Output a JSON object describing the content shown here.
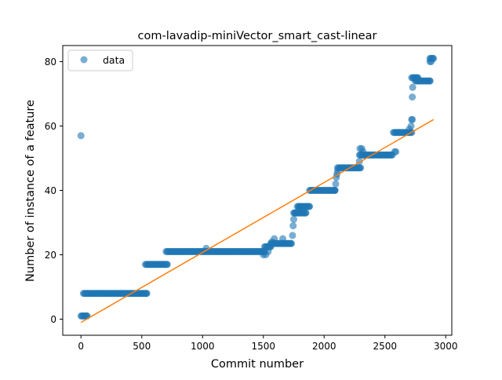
{
  "chart_data": {
    "type": "scatter",
    "title": "com-lavadip-miniVector_smart_cast-linear",
    "xlabel": "Commit number",
    "ylabel": "Number of instance of a feature",
    "xlim": [
      -150,
      3050
    ],
    "ylim": [
      -5,
      85
    ],
    "xticks": [
      0,
      500,
      1000,
      1500,
      2000,
      2500,
      3000
    ],
    "yticks": [
      0,
      20,
      40,
      60,
      80
    ],
    "grid": false,
    "legend": {
      "placement": "top-left",
      "entries": [
        "data"
      ]
    },
    "colors": {
      "data": "#1f77b4",
      "fit": "#ff7f0e"
    },
    "series": [
      {
        "name": "data",
        "kind": "points",
        "segments": [
          {
            "x_start": 0,
            "x_end": 50,
            "y": 1
          },
          {
            "x_start": 20,
            "x_end": 540,
            "y": 8
          },
          {
            "x_start": 530,
            "x_end": 710,
            "y": 17
          },
          {
            "x_start": 700,
            "x_end": 1510,
            "y": 21
          },
          {
            "x_start": 1510,
            "x_end": 1560,
            "y": 22.5
          },
          {
            "x_start": 1560,
            "x_end": 1730,
            "y": 23.5
          },
          {
            "x_start": 1750,
            "x_end": 1850,
            "y": 33
          },
          {
            "x_start": 1780,
            "x_end": 1880,
            "y": 35
          },
          {
            "x_start": 1880,
            "x_end": 2090,
            "y": 40
          },
          {
            "x_start": 2110,
            "x_end": 2300,
            "y": 47
          },
          {
            "x_start": 2290,
            "x_end": 2560,
            "y": 51
          },
          {
            "x_start": 2570,
            "x_end": 2720,
            "y": 58
          },
          {
            "x_start": 2720,
            "x_end": 2770,
            "y": 75
          },
          {
            "x_start": 2750,
            "x_end": 2870,
            "y": 74
          },
          {
            "x_start": 2870,
            "x_end": 2900,
            "y": 81
          }
        ],
        "points": [
          {
            "x": 0,
            "y": 57
          },
          {
            "x": 1030,
            "y": 22
          },
          {
            "x": 1500,
            "y": 20
          },
          {
            "x": 1520,
            "y": 20
          },
          {
            "x": 1540,
            "y": 21
          },
          {
            "x": 1570,
            "y": 24
          },
          {
            "x": 1590,
            "y": 25
          },
          {
            "x": 1660,
            "y": 25
          },
          {
            "x": 1740,
            "y": 26
          },
          {
            "x": 1745,
            "y": 29
          },
          {
            "x": 1750,
            "y": 31
          },
          {
            "x": 1760,
            "y": 33
          },
          {
            "x": 1790,
            "y": 34
          },
          {
            "x": 1800,
            "y": 35
          },
          {
            "x": 2085,
            "y": 40
          },
          {
            "x": 2095,
            "y": 42
          },
          {
            "x": 2100,
            "y": 44
          },
          {
            "x": 2105,
            "y": 45
          },
          {
            "x": 2110,
            "y": 46
          },
          {
            "x": 2290,
            "y": 49
          },
          {
            "x": 2295,
            "y": 53
          },
          {
            "x": 2310,
            "y": 53
          },
          {
            "x": 2320,
            "y": 52
          },
          {
            "x": 2580,
            "y": 52
          },
          {
            "x": 2590,
            "y": 52
          },
          {
            "x": 2700,
            "y": 59
          },
          {
            "x": 2715,
            "y": 60
          },
          {
            "x": 2720,
            "y": 62
          },
          {
            "x": 2725,
            "y": 62
          },
          {
            "x": 2725,
            "y": 69
          },
          {
            "x": 2728,
            "y": 72
          },
          {
            "x": 2870,
            "y": 80
          },
          {
            "x": 2880,
            "y": 80
          }
        ]
      },
      {
        "name": "",
        "kind": "line",
        "x": [
          0,
          2900
        ],
        "y": [
          -1,
          62
        ]
      }
    ]
  }
}
